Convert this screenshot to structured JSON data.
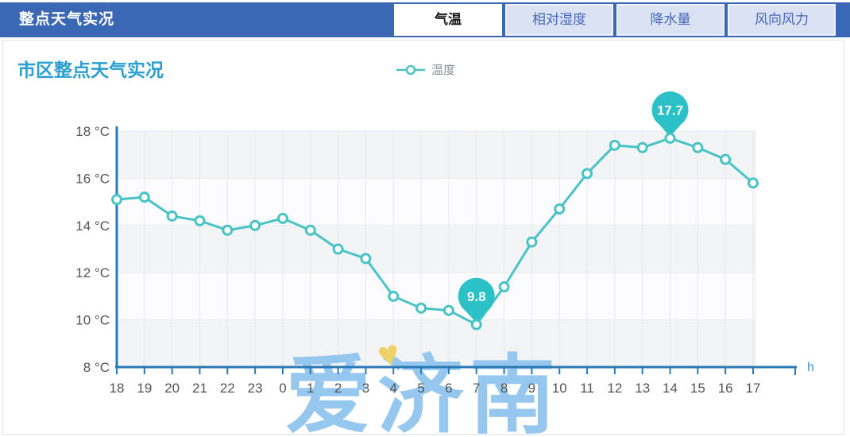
{
  "header": {
    "title": "整点天气实况",
    "tabs": [
      {
        "key": "temperature",
        "label": "气温",
        "active": true
      },
      {
        "key": "humidity",
        "label": "相对湿度",
        "active": false
      },
      {
        "key": "precipitation",
        "label": "降水量",
        "active": false
      },
      {
        "key": "wind",
        "label": "风向风力",
        "active": false
      }
    ]
  },
  "chart": {
    "title": "市区整点天气实况",
    "legend": "温度",
    "axis_unit": "h"
  },
  "watermark": {
    "text": "爱济南",
    "heart_icon": "♥"
  },
  "colors": {
    "header_blue": "#3a68b5",
    "tab_inactive_bg": "#dbe2f3",
    "tab_inactive_text": "#4768b8",
    "tab_active_bg": "#ffffff",
    "tab_active_text": "#1a1a1a",
    "chart_title": "#2b9ed2",
    "series_teal": "#49c3c5",
    "callout_teal": "#2cc1c7",
    "axis_blue": "#2a7ab5",
    "axis_label_gray": "#555555",
    "unit_blue": "#4a90d9",
    "watermark_blue": "#96c8ef",
    "heart_yellow": "#efd169",
    "band_gray": "#f3f4f6",
    "band_white": "#fcfcfe",
    "grid_line": "#e7e9ec",
    "legend_text": "#8a9099"
  },
  "chart_data": {
    "type": "line",
    "title": "市区整点天气实况",
    "categories": [
      "18",
      "19",
      "20",
      "21",
      "22",
      "23",
      "0",
      "1",
      "2",
      "3",
      "4",
      "5",
      "6",
      "7",
      "8",
      "9",
      "10",
      "11",
      "12",
      "13",
      "14",
      "15",
      "16",
      "17"
    ],
    "series": [
      {
        "name": "温度",
        "values": [
          15.1,
          15.2,
          14.4,
          14.2,
          13.8,
          14.0,
          14.3,
          13.8,
          13.0,
          12.6,
          11.0,
          10.5,
          10.4,
          9.8,
          11.4,
          13.3,
          14.7,
          16.2,
          17.4,
          17.3,
          17.7,
          17.3,
          16.8,
          15.8
        ]
      }
    ],
    "ylim": [
      8,
      18
    ],
    "ytick_step": 2,
    "ytick_suffix": " °C",
    "x_unit": "h",
    "grid": true,
    "legend_position": "top",
    "annotations": [
      {
        "category": "7",
        "value": 9.8,
        "label": "9.8",
        "type": "min"
      },
      {
        "category": "14",
        "value": 17.7,
        "label": "17.7",
        "type": "max"
      }
    ]
  }
}
